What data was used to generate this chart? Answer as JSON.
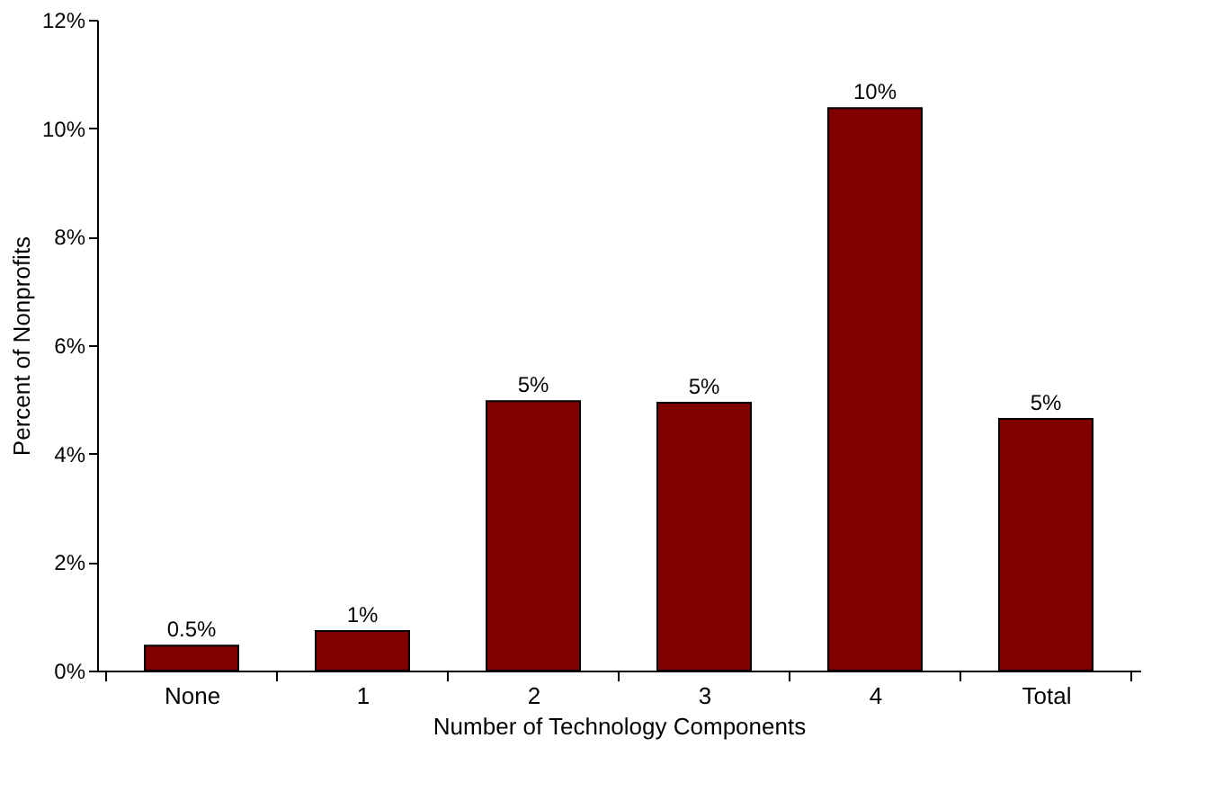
{
  "chart_data": {
    "type": "bar",
    "xlabel": "Number of Technology Components",
    "ylabel": "Percent of Nonprofits",
    "categories": [
      "None",
      "1",
      "2",
      "3",
      "4",
      "Total"
    ],
    "series": [
      {
        "color": "#800000",
        "values": [
          0.46,
          0.73,
          4.97,
          4.94,
          10.37,
          4.64
        ],
        "value_labels": [
          "0.5%",
          "1%",
          "5%",
          "5%",
          "10%",
          "5%"
        ]
      }
    ],
    "ylim": [
      0,
      12
    ],
    "yticks": [
      {
        "value": 0,
        "label": "0%"
      },
      {
        "value": 2,
        "label": "2%"
      },
      {
        "value": 4,
        "label": "4%"
      },
      {
        "value": 6,
        "label": "6%"
      },
      {
        "value": 8,
        "label": "8%"
      },
      {
        "value": 10,
        "label": "10%"
      },
      {
        "value": 12,
        "label": "12%"
      }
    ],
    "grid": false
  }
}
